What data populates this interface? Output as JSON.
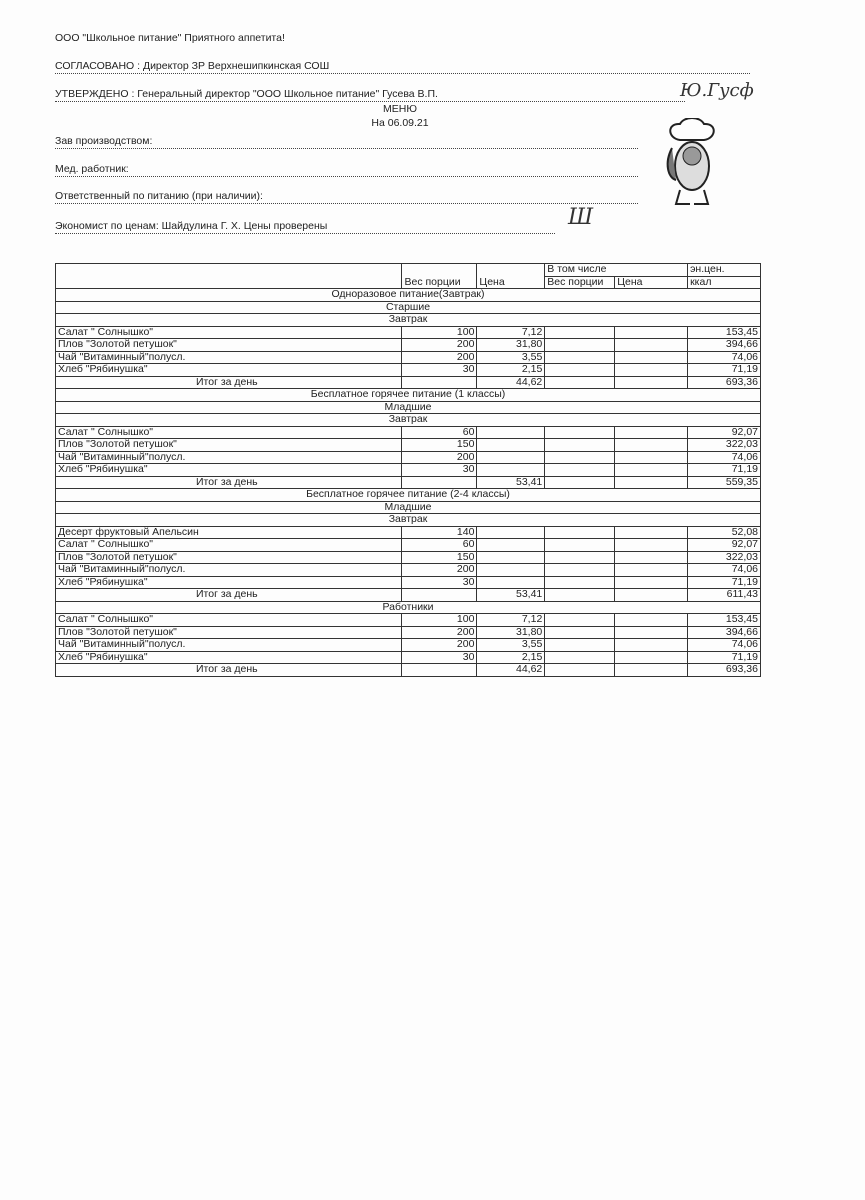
{
  "header": {
    "company": "ООО \"Школьное питание\" Приятного аппетита!",
    "agreed": "СОГЛАСОВАНО : Директор ЗР Верхнешипкинская СОШ",
    "approved": "УТВЕРЖДЕНО : Генеральный директор \"ООО Школьное питание\" Гусева В.П.",
    "title": "МЕНЮ",
    "date": "На 06.09.21",
    "production": "Зав производством:",
    "medic": "Мед. работник:",
    "responsible": "Ответственный по питанию (при наличии):",
    "economist": "Экономист по ценам: Шайдулина Г. Х.   Цены проверены"
  },
  "table": {
    "headers": {
      "weight": "Вес порции",
      "price": "Цена",
      "including": "В том числе",
      "inc_weight": "Вес порции",
      "inc_price": "Цена",
      "energy1": "эн.цен.",
      "energy2": "ккал"
    },
    "rows": [
      {
        "type": "section",
        "text": "Одноразовое питание(Завтрак)"
      },
      {
        "type": "section",
        "text": "Старшие"
      },
      {
        "type": "section",
        "text": "Завтрак"
      },
      {
        "type": "item",
        "name": "Салат \" Солнышко\"",
        "weight": "100",
        "price": "7,12",
        "kcal": "153,45"
      },
      {
        "type": "item",
        "name": "Плов \"Золотой петушок\"",
        "weight": "200",
        "price": "31,80",
        "kcal": "394,66"
      },
      {
        "type": "item",
        "name": "Чай \"Витаминный\"полусл.",
        "weight": "200",
        "price": "3,55",
        "kcal": "74,06"
      },
      {
        "type": "item",
        "name": "Хлеб \"Рябинушка\"",
        "weight": "30",
        "price": "2,15",
        "kcal": "71,19"
      },
      {
        "type": "total",
        "name": "Итог за день",
        "weight": "",
        "price": "44,62",
        "kcal": "693,36"
      },
      {
        "type": "section",
        "text": "Бесплатное горячее питание (1 классы)"
      },
      {
        "type": "section",
        "text": "Младшие"
      },
      {
        "type": "section",
        "text": "Завтрак"
      },
      {
        "type": "item",
        "name": "Салат \" Солнышко\"",
        "weight": "60",
        "price": "",
        "kcal": "92,07"
      },
      {
        "type": "item",
        "name": "Плов \"Золотой петушок\"",
        "weight": "150",
        "price": "",
        "kcal": "322,03"
      },
      {
        "type": "item",
        "name": "Чай \"Витаминный\"полусл.",
        "weight": "200",
        "price": "",
        "kcal": "74,06"
      },
      {
        "type": "item",
        "name": "Хлеб \"Рябинушка\"",
        "weight": "30",
        "price": "",
        "kcal": "71,19"
      },
      {
        "type": "total",
        "name": "Итог за день",
        "weight": "",
        "price": "53,41",
        "kcal": "559,35"
      },
      {
        "type": "section",
        "text": "Бесплатное горячее питание (2-4 классы)"
      },
      {
        "type": "section",
        "text": "Младшие"
      },
      {
        "type": "section",
        "text": "Завтрак"
      },
      {
        "type": "item",
        "name": "Десерт фруктовый Апельсин",
        "weight": "140",
        "price": "",
        "kcal": "52,08"
      },
      {
        "type": "item",
        "name": "Салат \" Солнышко\"",
        "weight": "60",
        "price": "",
        "kcal": "92,07"
      },
      {
        "type": "item",
        "name": "Плов \"Золотой петушок\"",
        "weight": "150",
        "price": "",
        "kcal": "322,03"
      },
      {
        "type": "item",
        "name": "Чай \"Витаминный\"полусл.",
        "weight": "200",
        "price": "",
        "kcal": "74,06"
      },
      {
        "type": "item",
        "name": "Хлеб \"Рябинушка\"",
        "weight": "30",
        "price": "",
        "kcal": "71,19"
      },
      {
        "type": "total",
        "name": "Итог за день",
        "weight": "",
        "price": "53,41",
        "kcal": "611,43"
      },
      {
        "type": "section",
        "text": "Работники"
      },
      {
        "type": "item",
        "name": "Салат \" Солнышко\"",
        "weight": "100",
        "price": "7,12",
        "kcal": "153,45"
      },
      {
        "type": "item",
        "name": "Плов \"Золотой петушок\"",
        "weight": "200",
        "price": "31,80",
        "kcal": "394,66"
      },
      {
        "type": "item",
        "name": "Чай \"Витаминный\"полусл.",
        "weight": "200",
        "price": "3,55",
        "kcal": "74,06"
      },
      {
        "type": "item",
        "name": "Хлеб \"Рябинушка\"",
        "weight": "30",
        "price": "2,15",
        "kcal": "71,19"
      },
      {
        "type": "total",
        "name": "Итог за день",
        "weight": "",
        "price": "44,62",
        "kcal": "693,36"
      }
    ]
  }
}
